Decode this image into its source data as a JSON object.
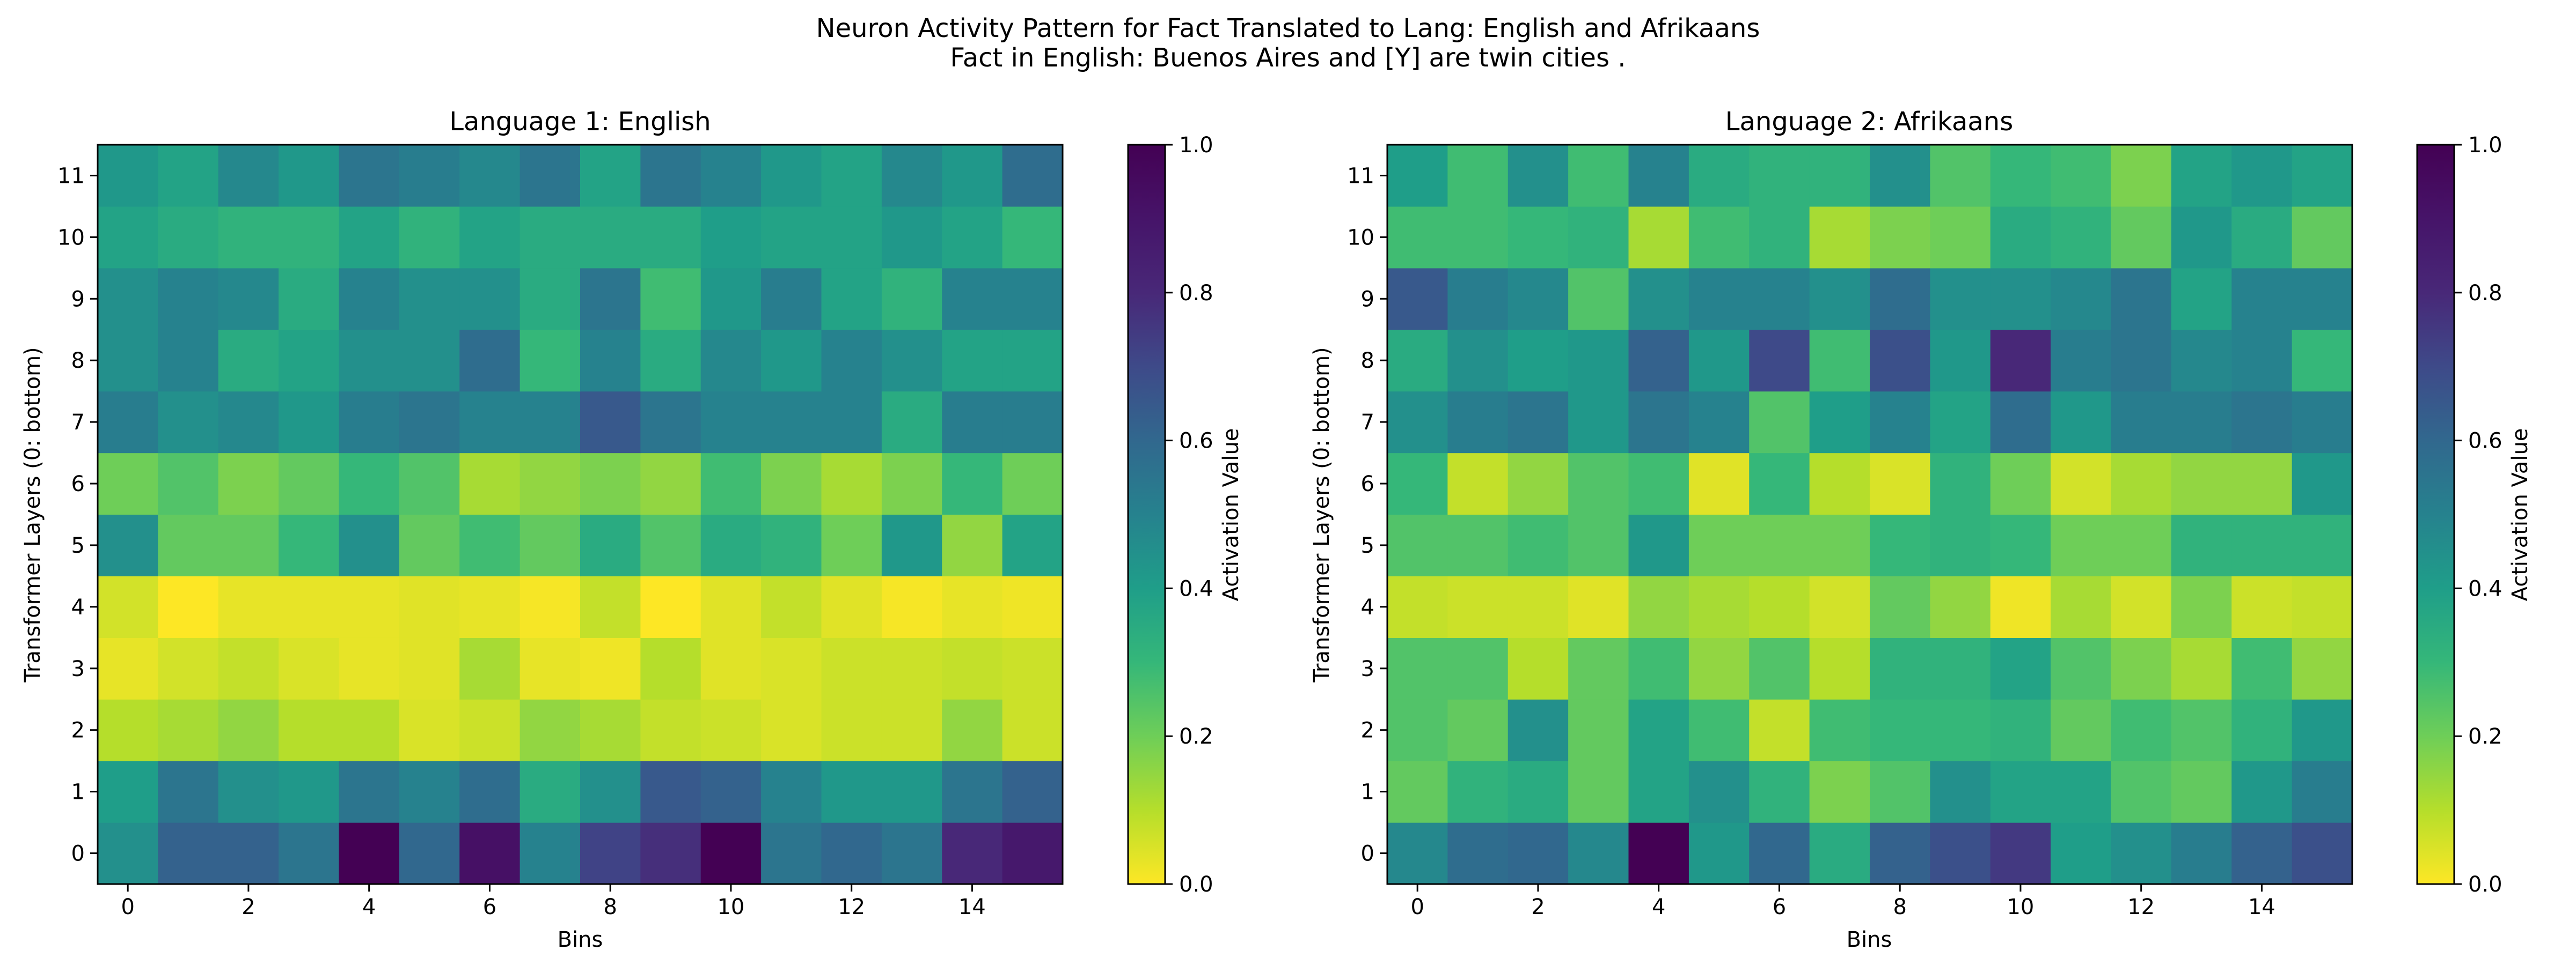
{
  "figure": {
    "title_line1": "Neuron Activity Pattern for Fact Translated to Lang: English and Afrikaans",
    "title_line2": "Fact in English: Buenos Aires and [Y] are twin cities ."
  },
  "chart_data": [
    {
      "type": "heatmap",
      "title": "Language 1: English",
      "xlabel": "Bins",
      "ylabel": "Transformer Layers (0: bottom)",
      "colorbar_label": "Activation Value",
      "colormap": "viridis_r",
      "vmin": 0.0,
      "vmax": 1.0,
      "x_ticks": [
        0,
        2,
        4,
        6,
        8,
        10,
        12,
        14
      ],
      "y_ticks": [
        0,
        1,
        2,
        3,
        4,
        5,
        6,
        7,
        8,
        9,
        10,
        11
      ],
      "colorbar_ticks": [
        "0.0",
        "0.2",
        "0.4",
        "0.6",
        "0.8",
        "1.0"
      ],
      "rows_bottom_to_top": [
        [
          0.45,
          0.62,
          0.62,
          0.55,
          1.0,
          0.6,
          0.92,
          0.5,
          0.72,
          0.78,
          1.0,
          0.55,
          0.6,
          0.55,
          0.8,
          0.88
        ],
        [
          0.4,
          0.55,
          0.45,
          0.42,
          0.55,
          0.5,
          0.58,
          0.35,
          0.45,
          0.65,
          0.62,
          0.5,
          0.42,
          0.42,
          0.55,
          0.62
        ],
        [
          0.1,
          0.12,
          0.15,
          0.1,
          0.1,
          0.05,
          0.07,
          0.15,
          0.12,
          0.08,
          0.07,
          0.05,
          0.07,
          0.07,
          0.15,
          0.07
        ],
        [
          0.03,
          0.06,
          0.08,
          0.05,
          0.03,
          0.04,
          0.12,
          0.03,
          0.02,
          0.1,
          0.04,
          0.05,
          0.07,
          0.07,
          0.08,
          0.07
        ],
        [
          0.06,
          0.0,
          0.03,
          0.03,
          0.03,
          0.04,
          0.03,
          0.01,
          0.08,
          0.0,
          0.04,
          0.08,
          0.04,
          0.01,
          0.03,
          0.02
        ],
        [
          0.45,
          0.22,
          0.22,
          0.3,
          0.45,
          0.22,
          0.28,
          0.22,
          0.35,
          0.25,
          0.35,
          0.32,
          0.2,
          0.42,
          0.15,
          0.38
        ],
        [
          0.2,
          0.25,
          0.18,
          0.22,
          0.3,
          0.25,
          0.12,
          0.15,
          0.18,
          0.15,
          0.28,
          0.18,
          0.12,
          0.18,
          0.3,
          0.2
        ],
        [
          0.52,
          0.45,
          0.48,
          0.42,
          0.52,
          0.55,
          0.5,
          0.5,
          0.65,
          0.55,
          0.5,
          0.5,
          0.5,
          0.35,
          0.52,
          0.52
        ],
        [
          0.45,
          0.5,
          0.35,
          0.38,
          0.45,
          0.45,
          0.58,
          0.3,
          0.5,
          0.35,
          0.48,
          0.42,
          0.5,
          0.45,
          0.38,
          0.38
        ],
        [
          0.45,
          0.5,
          0.48,
          0.35,
          0.5,
          0.45,
          0.45,
          0.35,
          0.55,
          0.28,
          0.42,
          0.52,
          0.38,
          0.32,
          0.5,
          0.5
        ],
        [
          0.38,
          0.35,
          0.32,
          0.32,
          0.38,
          0.32,
          0.38,
          0.35,
          0.35,
          0.35,
          0.4,
          0.38,
          0.38,
          0.42,
          0.38,
          0.3
        ],
        [
          0.42,
          0.38,
          0.48,
          0.42,
          0.55,
          0.52,
          0.48,
          0.55,
          0.38,
          0.55,
          0.5,
          0.42,
          0.38,
          0.48,
          0.42,
          0.58
        ]
      ]
    },
    {
      "type": "heatmap",
      "title": "Language 2: Afrikaans",
      "xlabel": "Bins",
      "ylabel": "Transformer Layers (0: bottom)",
      "colorbar_label": "Activation Value",
      "colormap": "viridis_r",
      "vmin": 0.0,
      "vmax": 1.0,
      "x_ticks": [
        0,
        2,
        4,
        6,
        8,
        10,
        12,
        14
      ],
      "y_ticks": [
        0,
        1,
        2,
        3,
        4,
        5,
        6,
        7,
        8,
        9,
        10,
        11
      ],
      "colorbar_ticks": [
        "0.0",
        "0.2",
        "0.4",
        "0.6",
        "0.8",
        "1.0"
      ],
      "rows_bottom_to_top": [
        [
          0.48,
          0.58,
          0.6,
          0.48,
          1.0,
          0.42,
          0.6,
          0.35,
          0.62,
          0.68,
          0.75,
          0.4,
          0.45,
          0.52,
          0.62,
          0.68
        ],
        [
          0.22,
          0.32,
          0.35,
          0.22,
          0.38,
          0.45,
          0.32,
          0.18,
          0.25,
          0.45,
          0.38,
          0.38,
          0.25,
          0.22,
          0.42,
          0.52
        ],
        [
          0.25,
          0.22,
          0.45,
          0.22,
          0.38,
          0.28,
          0.08,
          0.28,
          0.3,
          0.3,
          0.32,
          0.22,
          0.28,
          0.25,
          0.32,
          0.42
        ],
        [
          0.25,
          0.25,
          0.1,
          0.22,
          0.28,
          0.15,
          0.25,
          0.1,
          0.32,
          0.32,
          0.38,
          0.25,
          0.18,
          0.12,
          0.28,
          0.15
        ],
        [
          0.08,
          0.07,
          0.07,
          0.04,
          0.15,
          0.12,
          0.1,
          0.06,
          0.22,
          0.15,
          0.02,
          0.12,
          0.06,
          0.18,
          0.07,
          0.08
        ],
        [
          0.25,
          0.25,
          0.28,
          0.25,
          0.42,
          0.2,
          0.2,
          0.2,
          0.3,
          0.32,
          0.3,
          0.2,
          0.2,
          0.32,
          0.32,
          0.32
        ],
        [
          0.3,
          0.08,
          0.15,
          0.25,
          0.28,
          0.04,
          0.3,
          0.1,
          0.05,
          0.32,
          0.2,
          0.06,
          0.12,
          0.15,
          0.15,
          0.42
        ],
        [
          0.45,
          0.52,
          0.55,
          0.42,
          0.55,
          0.5,
          0.25,
          0.4,
          0.5,
          0.38,
          0.58,
          0.42,
          0.52,
          0.52,
          0.55,
          0.52
        ],
        [
          0.35,
          0.45,
          0.4,
          0.42,
          0.62,
          0.42,
          0.7,
          0.28,
          0.68,
          0.42,
          0.8,
          0.52,
          0.55,
          0.48,
          0.5,
          0.3
        ],
        [
          0.65,
          0.52,
          0.48,
          0.25,
          0.45,
          0.5,
          0.5,
          0.45,
          0.58,
          0.45,
          0.45,
          0.48,
          0.55,
          0.38,
          0.5,
          0.5
        ],
        [
          0.28,
          0.28,
          0.3,
          0.32,
          0.12,
          0.28,
          0.32,
          0.12,
          0.18,
          0.2,
          0.35,
          0.32,
          0.22,
          0.42,
          0.35,
          0.22
        ],
        [
          0.4,
          0.28,
          0.45,
          0.28,
          0.5,
          0.35,
          0.32,
          0.32,
          0.45,
          0.25,
          0.3,
          0.28,
          0.18,
          0.38,
          0.42,
          0.38
        ]
      ]
    }
  ]
}
